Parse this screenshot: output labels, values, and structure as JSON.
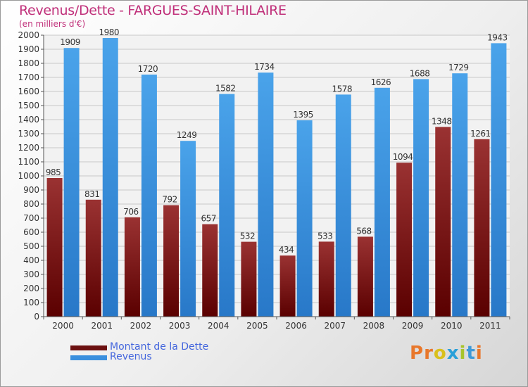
{
  "header": {
    "title": "Revenus/Dette - FARGUES-SAINT-HILAIRE",
    "subtitle": "(en milliers d'€)"
  },
  "legend": [
    {
      "label": "Montant de la Dette",
      "color": "#6b1010"
    },
    {
      "label": "Revenus",
      "color": "#3a8fde"
    }
  ],
  "logo": {
    "text": "Proxiti",
    "colors": [
      "#e8772b",
      "#e8772b",
      "#d9c01c",
      "#2aa0d8",
      "#a8c42b",
      "#3e9ad8",
      "#e8772b"
    ]
  },
  "chart_data": {
    "type": "bar",
    "categories": [
      "2000",
      "2001",
      "2002",
      "2003",
      "2004",
      "2005",
      "2006",
      "2007",
      "2008",
      "2009",
      "2010",
      "2011"
    ],
    "series": [
      {
        "name": "Montant de la Dette",
        "values": [
          985,
          831,
          706,
          792,
          657,
          532,
          434,
          533,
          568,
          1094,
          1348,
          1261
        ],
        "labels": [
          "985",
          "831",
          "706",
          "792",
          "657",
          "532",
          "434",
          "533",
          "568",
          "1094",
          "1348",
          "1261"
        ],
        "color_top": "#9a3232",
        "color_bottom": "#5a0000"
      },
      {
        "name": "Revenus",
        "values": [
          1909,
          1980,
          1720,
          1249,
          1582,
          1734,
          1395,
          1578,
          1626,
          1688,
          1729,
          1943
        ],
        "labels": [
          "1909",
          "1980",
          "1720",
          "1249",
          "1582",
          "1734",
          "1395",
          "1578",
          "1626",
          "1688",
          "1729",
          "1943"
        ],
        "color_top": "#4aa3ea",
        "color_bottom": "#2878c8"
      }
    ],
    "ylim": [
      0,
      2000
    ],
    "ytick_step": 100,
    "grid": true
  }
}
